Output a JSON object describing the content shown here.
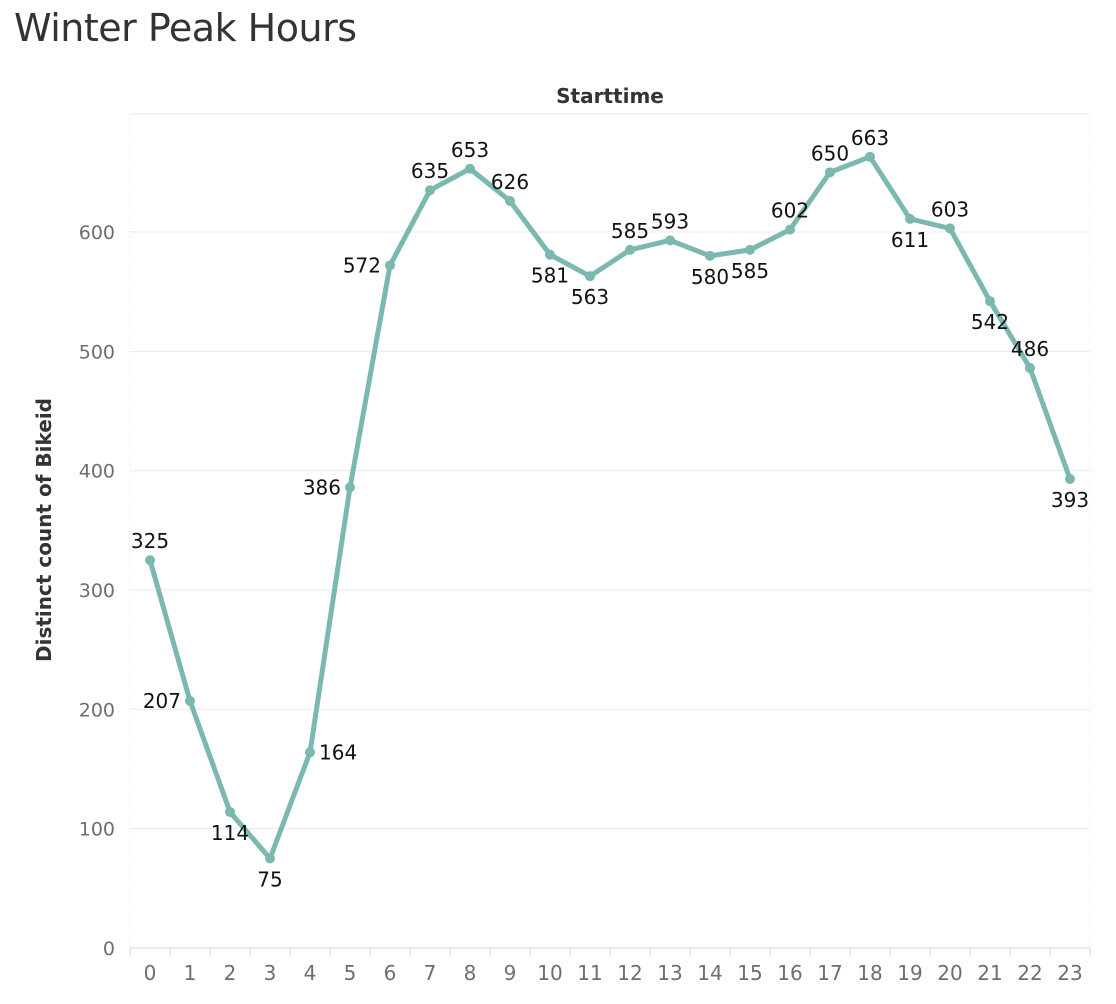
{
  "chart_data": {
    "type": "line",
    "title": "Winter Peak Hours",
    "xlabel": "Starttime",
    "ylabel": "Distinct count of Bikeid",
    "categories": [
      "0",
      "1",
      "2",
      "3",
      "4",
      "5",
      "6",
      "7",
      "8",
      "9",
      "10",
      "11",
      "12",
      "13",
      "14",
      "15",
      "16",
      "17",
      "18",
      "19",
      "20",
      "21",
      "22",
      "23"
    ],
    "values": [
      325,
      207,
      114,
      75,
      164,
      386,
      572,
      635,
      653,
      626,
      581,
      563,
      585,
      593,
      580,
      585,
      602,
      650,
      663,
      611,
      603,
      542,
      486,
      393
    ],
    "label_positions": [
      "above",
      "left",
      "below",
      "below",
      "right",
      "left",
      "left",
      "above",
      "above",
      "above",
      "below",
      "below",
      "above",
      "above",
      "below",
      "below",
      "above",
      "above",
      "above",
      "below",
      "above",
      "below",
      "above",
      "below"
    ],
    "ylim": [
      0,
      700
    ],
    "yticks": [
      0,
      100,
      200,
      300,
      400,
      500,
      600
    ],
    "grid": true,
    "legend": "none",
    "line_color": "#7ab8b0"
  }
}
